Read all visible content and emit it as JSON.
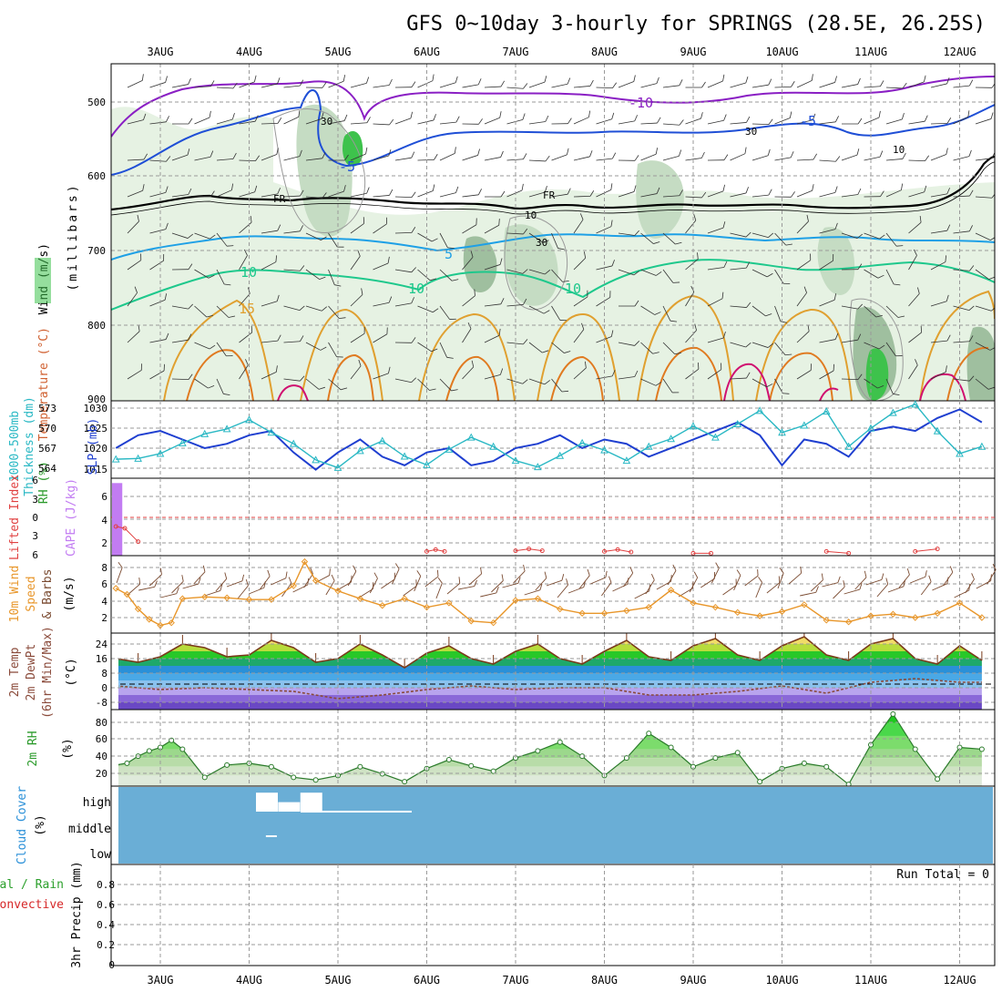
{
  "title": "GFS 0~10day 3-hourly for SPRINGS (28.5E, 26.25S)",
  "dates": [
    "3AUG",
    "4AUG",
    "5AUG",
    "6AUG",
    "7AUG",
    "8AUG",
    "9AUG",
    "10AUG",
    "11AUG",
    "12AUG"
  ],
  "colors": {
    "temp_contour_cold": "#8a1fc4",
    "temp_contour_m5": "#1f4fd6",
    "freezing_line": "#000000",
    "temp_contour_5": "#1ea0e6",
    "temp_contour_10": "#1ec88c",
    "temp_contour_15": "#e0a030",
    "temp_contour_20": "#e07a20",
    "temp_contour_25": "#d01070",
    "rh_fill_light": "#e6f2e3",
    "rh_fill_mid": "#c5dcc3",
    "rh_fill_dark": "#9fbf9f",
    "rh_fill_saturated": "#3ec24c",
    "slp_line": "#1f3fd0",
    "thickness_line": "#2ab8c4",
    "cape_bar": "#c27cf2",
    "lifted_index_line": "#e04040",
    "wind_speed_line": "#e8962a",
    "wind_barb": "#7a4a30",
    "temp_fill_warm": "#f0dc68",
    "temp_fill_mild": "#28c828",
    "temp_fill_cool": "#2a90d8",
    "temp_fill_cold": "#8a68d8",
    "dewpoint_line": "#8a4a3a",
    "rh_line": "#2a7a2a",
    "cloud_bg": "#6aaed6",
    "cloud_fill": "#ffffff",
    "precip_total": "#2ca02c",
    "precip_convective": "#d62728"
  },
  "panels": {
    "upper": {
      "ylabel_parts": [
        "RH (%)",
        "Temperature (°C)",
        "Wind (m/s)"
      ],
      "ylabel_units": "(millibars)",
      "yticks": [
        "500",
        "600",
        "700",
        "800",
        "900"
      ],
      "contour_labels": [
        "-10",
        "-5",
        "-5",
        "FR",
        "FR",
        "5",
        "10",
        "10",
        "10",
        "15",
        "30",
        "30",
        "10",
        "10",
        "30"
      ]
    },
    "slp": {
      "ylabel_left": "1000-500mb",
      "ylabel_left2": "Thickness (dm)",
      "ylabel_right": "SLP (mb)",
      "yticks_left": [
        "573",
        "570",
        "567",
        "564"
      ],
      "yticks_right": [
        "1030",
        "1025",
        "1020",
        "1015"
      ]
    },
    "cape": {
      "ylabel_left": "Lifted Index",
      "ylabel_right": "CAPE (J/kg)",
      "yticks_left": [
        "6",
        "3",
        "0",
        "3",
        "6"
      ],
      "yticks_right": [
        "6",
        "4",
        "2"
      ]
    },
    "wind": {
      "ylabel_1": "10m Wind",
      "ylabel_2": "Speed",
      "ylabel_3": "& Barbs",
      "ylabel_units": "(m/s)",
      "yticks": [
        "8",
        "6",
        "4",
        "2"
      ]
    },
    "temp": {
      "ylabel_1": "2m Temp",
      "ylabel_2": "2m DewPt",
      "ylabel_3": "(6hr Min/Max)",
      "ylabel_units": "(°C)",
      "yticks": [
        "24",
        "16",
        "8",
        "0",
        "-8"
      ]
    },
    "rh": {
      "ylabel": "2m RH",
      "ylabel_units": "(%)",
      "yticks": [
        "80",
        "60",
        "40",
        "20"
      ]
    },
    "cloud": {
      "ylabel": "Cloud Cover",
      "ylabel_units": "(%)",
      "levels": [
        "high",
        "middle",
        "low"
      ]
    },
    "precip": {
      "ylabel_1": "tal / Rain",
      "ylabel_2": "Convective",
      "ylabel_3": "3hr Precip (mm)",
      "yticks": [
        "0.8",
        "0.6",
        "0.4",
        "0.2",
        "0"
      ],
      "run_total": "Run Total = 0"
    }
  },
  "chart_data": [
    {
      "type": "line",
      "name_panel": "SLP and 1000-500mb thickness",
      "x_unit": "days since 2 Aug 00Z",
      "x_range": [
        0.5,
        10.3
      ],
      "slp_ylim": [
        1013,
        1031
      ],
      "thickness_ylim": [
        562.5,
        573.5
      ],
      "series": [
        {
          "name": "SLP (mb)",
          "x": [
            0.5,
            0.75,
            1,
            1.25,
            1.5,
            1.75,
            2,
            2.25,
            2.5,
            2.75,
            3,
            3.25,
            3.5,
            3.75,
            4,
            4.25,
            4.5,
            4.75,
            5,
            5.25,
            5.5,
            5.75,
            6,
            6.25,
            6.5,
            6.75,
            7,
            7.25,
            7.5,
            7.75,
            8,
            8.25,
            8.5,
            8.75,
            9,
            9.25,
            9.5,
            9.75,
            10,
            10.25
          ],
          "values": [
            1020,
            1023,
            1024,
            1022,
            1020,
            1021,
            1023,
            1024,
            1019,
            1015,
            1019,
            1022,
            1018,
            1016,
            1019,
            1020,
            1016,
            1017,
            1020,
            1021,
            1023,
            1020,
            1022,
            1021,
            1018,
            1020,
            1022,
            1024,
            1026,
            1023,
            1016,
            1022,
            1021,
            1018,
            1024,
            1025,
            1024,
            1027,
            1029,
            1026
          ]
        },
        {
          "name": "1000-500mb Thickness (dm)",
          "x": [
            0.5,
            0.75,
            1,
            1.25,
            1.5,
            1.75,
            2,
            2.25,
            2.5,
            2.75,
            3,
            3.25,
            3.5,
            3.75,
            4,
            4.25,
            4.5,
            4.75,
            5,
            5.25,
            5.5,
            5.75,
            6,
            6.25,
            6.5,
            6.75,
            7,
            7.25,
            7.5,
            7.75,
            8,
            8.25,
            8.5,
            8.75,
            9,
            9.25,
            9.5,
            9.75,
            10,
            10.25
          ],
          "values": [
            565.2,
            565.3,
            566.0,
            567.5,
            568.8,
            569.5,
            570.8,
            569.0,
            567.4,
            565.1,
            564.0,
            566.4,
            567.8,
            565.6,
            564.4,
            566.6,
            568.3,
            567.0,
            565.0,
            564.1,
            565.7,
            567.5,
            566.5,
            565.0,
            567.0,
            568.1,
            569.9,
            568.3,
            570.2,
            572.1,
            569.0,
            570.0,
            572.0,
            567.0,
            569.6,
            571.8,
            573.0,
            569.2,
            566.0,
            567.0
          ]
        }
      ]
    },
    {
      "type": "bar",
      "name_panel": "CAPE and Lifted Index",
      "cape_bar": {
        "x": 0.5,
        "value": 7.5
      },
      "lifted_index": {
        "x": [
          0.5,
          0.6,
          0.75,
          4.0,
          4.1,
          4.2,
          5.0,
          5.15,
          5.3,
          6.0,
          6.15,
          6.3,
          7.0,
          7.2,
          8.5,
          8.75,
          9.5,
          9.75
        ],
        "values": [
          1.5,
          1.8,
          4.0,
          5.6,
          5.3,
          5.6,
          5.5,
          5.2,
          5.5,
          5.6,
          5.3,
          5.7,
          5.9,
          5.9,
          5.6,
          5.9,
          5.6,
          5.2
        ]
      },
      "cape_ylim": [
        0,
        8
      ],
      "li_ylim": [
        -6,
        6
      ]
    },
    {
      "type": "line",
      "name_panel": "10m wind speed",
      "ylim": [
        0,
        9
      ],
      "x": [
        0.5,
        0.625,
        0.75,
        0.875,
        1,
        1.125,
        1.25,
        1.5,
        1.75,
        2,
        2.25,
        2.5,
        2.625,
        2.75,
        3,
        3.25,
        3.5,
        3.75,
        4,
        4.25,
        4.5,
        4.75,
        5,
        5.25,
        5.5,
        5.75,
        6,
        6.25,
        6.5,
        6.75,
        7,
        7.25,
        7.5,
        7.75,
        8,
        8.25,
        8.5,
        8.75,
        9,
        9.25,
        9.5,
        9.75,
        10,
        10.25
      ],
      "values": [
        5.2,
        4.5,
        2.8,
        1.6,
        0.9,
        1.2,
        4.0,
        4.2,
        4.1,
        3.9,
        3.9,
        5.5,
        8.3,
        6.1,
        4.9,
        4.0,
        3.2,
        4.0,
        3.0,
        3.5,
        1.4,
        1.2,
        3.8,
        4.0,
        2.8,
        2.3,
        2.3,
        2.6,
        3.0,
        5.0,
        3.5,
        3.0,
        2.4,
        2.0,
        2.5,
        3.3,
        1.5,
        1.3,
        2.0,
        2.2,
        1.8,
        2.3,
        3.5,
        1.8
      ]
    },
    {
      "type": "area",
      "name_panel": "2m temperature and dewpoint",
      "ylim": [
        -14,
        28
      ],
      "temperature": {
        "x": [
          0.5,
          0.75,
          1,
          1.25,
          1.5,
          1.75,
          2,
          2.25,
          2.5,
          2.75,
          3,
          3.25,
          3.5,
          3.75,
          4,
          4.25,
          4.5,
          4.75,
          5,
          5.25,
          5.5,
          5.75,
          6,
          6.25,
          6.5,
          6.75,
          7,
          7.25,
          7.5,
          7.75,
          8,
          8.25,
          8.5,
          8.75,
          9,
          9.25,
          9.5,
          9.75,
          10,
          10.25
        ],
        "values": [
          14,
          12,
          15,
          22,
          20,
          15,
          16,
          24,
          20,
          12,
          14,
          22,
          16,
          9,
          17,
          21,
          14,
          11,
          18,
          22,
          14,
          11,
          18,
          24,
          15,
          13,
          21,
          25,
          16,
          13,
          21,
          26,
          16,
          13,
          22,
          25,
          14,
          11,
          21,
          13
        ]
      },
      "dewpoint": {
        "x": [
          0.5,
          1,
          1.5,
          2,
          2.5,
          3,
          3.5,
          4,
          4.5,
          5,
          5.5,
          6,
          6.5,
          7,
          7.5,
          8,
          8.5,
          9,
          9.5,
          10,
          10.25
        ],
        "values": [
          -1,
          -3,
          -2,
          -3,
          -4,
          -8,
          -6,
          -3,
          -1,
          -3,
          -2,
          -2,
          -6,
          -6,
          -4,
          -1,
          -5,
          1,
          3,
          1,
          1
        ]
      }
    },
    {
      "type": "area",
      "name_panel": "2m relative humidity",
      "ylim": [
        8,
        95
      ],
      "x": [
        0.5,
        0.625,
        0.75,
        0.875,
        1,
        1.125,
        1.25,
        1.5,
        1.75,
        2,
        2.25,
        2.5,
        2.75,
        3,
        3.25,
        3.5,
        3.75,
        4,
        4.25,
        4.5,
        4.75,
        5,
        5.25,
        5.5,
        5.75,
        6,
        6.25,
        6.5,
        6.75,
        7,
        7.25,
        7.5,
        7.75,
        8,
        8.25,
        8.5,
        8.75,
        9,
        9.25,
        9.5,
        9.75,
        10,
        10.25
      ],
      "values": [
        32,
        34,
        42,
        48,
        52,
        60,
        50,
        18,
        32,
        34,
        30,
        18,
        15,
        20,
        30,
        22,
        13,
        28,
        38,
        31,
        25,
        40,
        48,
        58,
        42,
        20,
        40,
        68,
        52,
        30,
        40,
        46,
        13,
        28,
        34,
        30,
        10,
        55,
        90,
        50,
        16,
        52,
        50
      ]
    },
    {
      "type": "bar",
      "name_panel": "cloud cover",
      "levels": [
        "high",
        "middle",
        "low"
      ],
      "high_cover_pct": [
        {
          "x": 2.2,
          "value": 80
        },
        {
          "x": 2.45,
          "value": 40
        },
        {
          "x": 2.7,
          "value": 80
        }
      ],
      "middle_cover_pct": [
        {
          "x": 2.25,
          "value": 10
        }
      ]
    },
    {
      "type": "bar",
      "name_panel": "3hr precipitation",
      "ylim": [
        0,
        1
      ],
      "series": [
        {
          "name": "Total / Rain",
          "values": []
        },
        {
          "name": "Convective",
          "values": []
        }
      ]
    }
  ]
}
